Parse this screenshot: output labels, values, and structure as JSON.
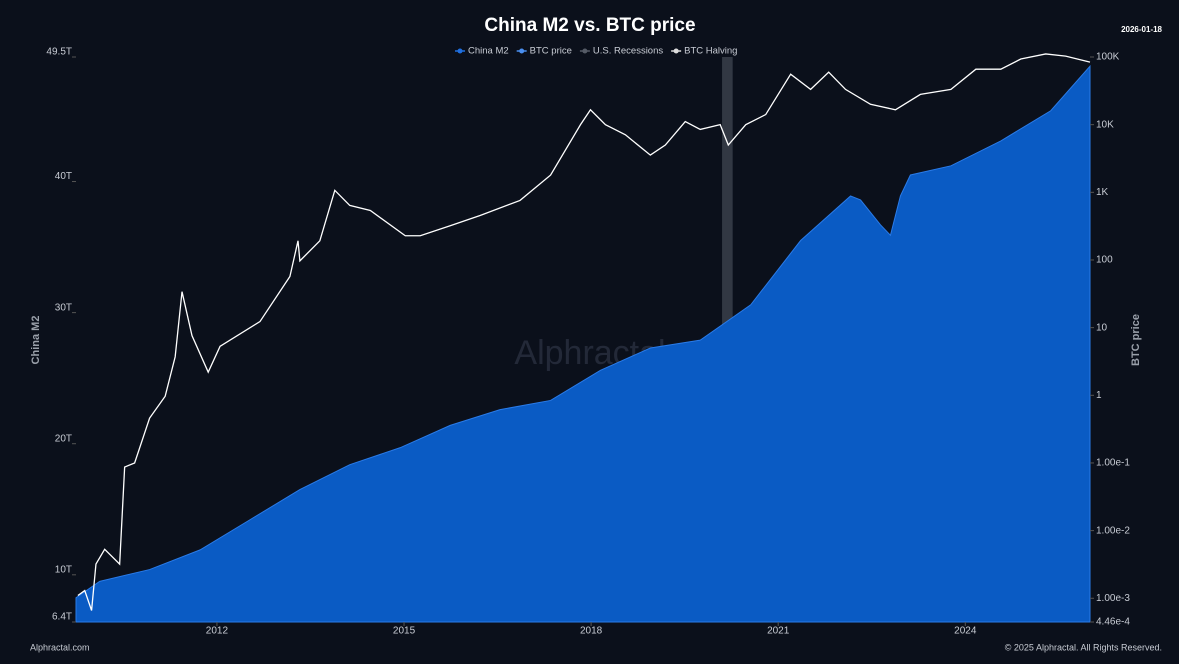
{
  "chart_data": {
    "type": "area-line",
    "title": "China M2 vs. BTC price",
    "date": "2026-01-18",
    "y_label": "China M2",
    "y2_label": "BTC price",
    "watermark": "Alphractal",
    "source": "Alphractal.com",
    "copyright": "© 2025 Alphractal. All Rights Reserved.",
    "xlim": [
      2009.74,
      2026.0
    ],
    "xticks": [
      2012,
      2015,
      2018,
      2021,
      2024
    ],
    "ylim": [
      6.4,
      49.5
    ],
    "yticks": [
      {
        "value": 6.4,
        "label": "6.4T"
      },
      {
        "value": 10,
        "label": "10T"
      },
      {
        "value": 20,
        "label": "20T"
      },
      {
        "value": 30,
        "label": "30T"
      },
      {
        "value": 40,
        "label": "40T"
      },
      {
        "value": 49.5,
        "label": "49.5T"
      }
    ],
    "y2lim": [
      0.000446,
      100000
    ],
    "y2scale": "log",
    "y2ticks": [
      {
        "value": 0.000446,
        "label": "4.46e-4"
      },
      {
        "value": 0.001,
        "label": "1.00e-3"
      },
      {
        "value": 0.01,
        "label": "1.00e-2"
      },
      {
        "value": 0.1,
        "label": "1.00e-1"
      },
      1,
      10,
      100,
      {
        "value": 1000,
        "label": "1K"
      },
      {
        "value": 10000,
        "label": "10K"
      },
      {
        "value": 100000,
        "label": "100K"
      }
    ],
    "series": [
      {
        "name": "China M2",
        "color": "#0a5bc4",
        "kind": "area",
        "x": [
          2009.74,
          2010.12,
          2010.92,
          2011.73,
          2012.53,
          2013.33,
          2014.13,
          2014.94,
          2015.74,
          2016.54,
          2017.35,
          2018.15,
          2018.95,
          2019.75,
          2020.56,
          2021.36,
          2022.16,
          2022.32,
          2022.64,
          2022.8,
          2022.96,
          2023.12,
          2023.77,
          2024.57,
          2025.37,
          2026.0
        ],
        "values": [
          8.25,
          9.5,
          10.4,
          11.9,
          14.2,
          16.5,
          18.4,
          19.7,
          21.4,
          22.6,
          23.3,
          25.6,
          27.3,
          27.9,
          30.6,
          35.5,
          38.9,
          38.6,
          36.7,
          35.9,
          38.9,
          40.5,
          41.2,
          43.1,
          45.4,
          48.8
        ]
      },
      {
        "name": "BTC price",
        "color": "#ffffff",
        "kind": "line",
        "axis": "y2",
        "x": [
          2009.77,
          2009.88,
          2009.99,
          2010.06,
          2010.2,
          2010.44,
          2010.52,
          2010.68,
          2010.92,
          2011.17,
          2011.33,
          2011.44,
          2011.6,
          2011.86,
          2012.05,
          2012.69,
          2013.17,
          2013.3,
          2013.33,
          2013.65,
          2013.89,
          2014.13,
          2014.46,
          2015.02,
          2015.26,
          2015.74,
          2016.22,
          2016.86,
          2017.35,
          2017.83,
          2017.99,
          2018.23,
          2018.55,
          2018.95,
          2019.19,
          2019.51,
          2019.75,
          2020.07,
          2020.2,
          2020.48,
          2020.8,
          2021.2,
          2021.52,
          2021.81,
          2022.08,
          2022.48,
          2022.88,
          2023.28,
          2023.77,
          2024.17,
          2024.57,
          2024.89,
          2025.29,
          2025.61,
          2026.0
        ],
        "values": [
          0.0011,
          0.0013,
          0.00066,
          0.0032,
          0.0053,
          0.0032,
          0.087,
          0.1,
          0.46,
          0.97,
          3.7,
          34,
          7.6,
          2.2,
          5.3,
          12.3,
          57,
          192,
          97,
          192,
          1070,
          640,
          538,
          228,
          228,
          321,
          454,
          759,
          1795,
          10000,
          16600,
          10000,
          7080,
          3550,
          5000,
          11100,
          8500,
          10000,
          5000,
          10000,
          14100,
          55700,
          33200,
          59700,
          33200,
          20000,
          16600,
          28000,
          33200,
          66000,
          66000,
          93300,
          111000,
          103000,
          84000
        ]
      }
    ],
    "recessions": {
      "name": "U.S. Recessions",
      "color": "#3a3f4a",
      "x": [
        [
          2020.1,
          2020.27
        ]
      ]
    },
    "halving": {
      "name": "BTC Halving"
    }
  }
}
